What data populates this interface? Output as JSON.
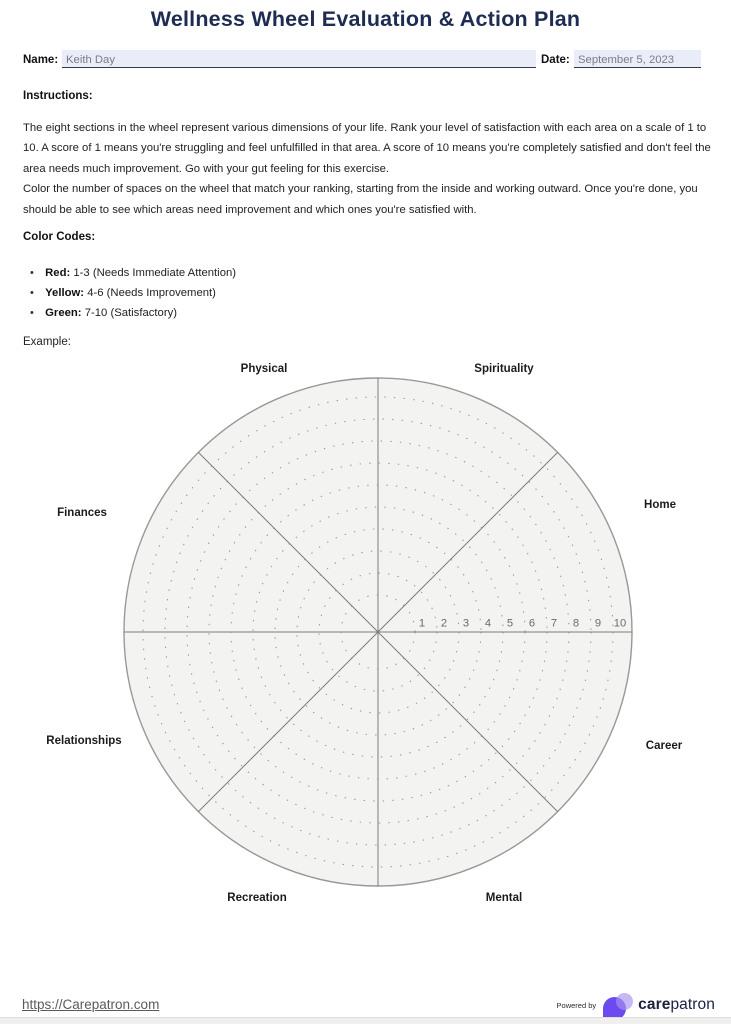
{
  "page": {
    "title": "Wellness Wheel Evaluation & Action Plan",
    "name_label": "Name:",
    "name_value": "Keith Day",
    "date_label": "Date:",
    "date_value": "September 5, 2023",
    "instructions_heading": "Instructions:",
    "instructions_p1": "The eight sections in the wheel represent various dimensions of your life. Rank your level of satisfaction with each area on a scale of 1 to 10. A score of 1 means you're struggling and feel unfulfilled in that area. A score of 10 means you're completely satisfied and don't feel the area needs much improvement. Go with your gut feeling for this exercise.",
    "instructions_p2": "Color the number of spaces on the wheel that match your ranking, starting from the inside and working outward. Once you're done, you should be able to see which areas need improvement and which ones you're satisfied with.",
    "color_codes_heading": "Color Codes:",
    "color_codes": [
      {
        "term": "Red:",
        "desc": "1-3 (Needs Immediate Attention)"
      },
      {
        "term": "Yellow:",
        "desc": "4-6 (Needs Improvement)"
      },
      {
        "term": "Green:",
        "desc": "7-10 (Satisfactory)"
      }
    ],
    "example_label": "Example:"
  },
  "chart_data": {
    "type": "wheel",
    "subtype": "wellness-wheel-blank-example",
    "sections": [
      "Physical",
      "Spirituality",
      "Finances",
      "Home",
      "Relationships",
      "Career",
      "Recreation",
      "Mental"
    ],
    "scale_ticks": [
      1,
      2,
      3,
      4,
      5,
      6,
      7,
      8,
      9,
      10
    ],
    "rings": 10,
    "filled_segments": [],
    "notes": "Blank example wheel: 8 equal sectors divided by solid radial lines, 10 dotted concentric rings, scale 1-10 printed along right horizontal radius"
  },
  "footer": {
    "link_text": "https://Carepatron.com",
    "powered_by": "Powered by",
    "brand_bold": "care",
    "brand_rest": "patron"
  },
  "colors": {
    "title_navy": "#1e2b52",
    "field_background": "#e8edf9",
    "wheel_fill": "#f3f3f1",
    "wheel_stroke": "#989896",
    "ring_dots": "#9b9b99",
    "scale_numbers": "#6b6b69",
    "brand_purple": "#6b4bf0",
    "brand_lavender": "#a892f0",
    "brand_navy": "#1a2142"
  }
}
